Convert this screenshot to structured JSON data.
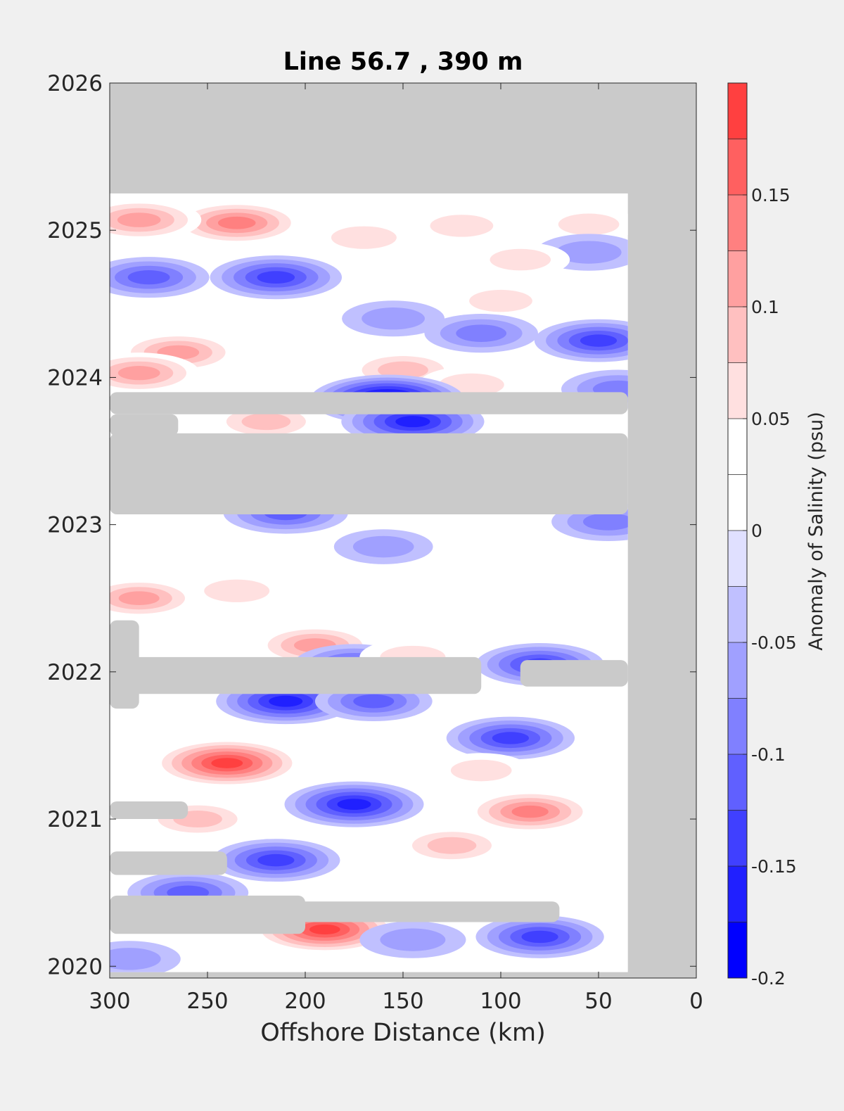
{
  "chart_data": {
    "type": "heatmap",
    "subtype": "filled-contour",
    "title": "Line 56.7 , 390 m",
    "xlabel": "Offshore Distance (km)",
    "ylabel": "",
    "x_reversed": true,
    "xlim": [
      0,
      300
    ],
    "ylim": [
      2019.92,
      2026
    ],
    "x_ticks": [
      300,
      250,
      200,
      150,
      100,
      50,
      0
    ],
    "y_ticks": [
      2020,
      2021,
      2022,
      2023,
      2024,
      2025,
      2026
    ],
    "grid": false,
    "colorbar": {
      "label": "Anomaly of Salinity (psu)",
      "range": [
        -0.2,
        0.2
      ],
      "tick_values": [
        -0.2,
        -0.15,
        -0.1,
        -0.05,
        0,
        0.05,
        0.1,
        0.15
      ],
      "tick_labels": [
        "-0.2",
        "-0.15",
        "-0.1",
        "-0.05",
        "0",
        "0.05",
        "0.1",
        "0.15"
      ],
      "levels": [
        -0.2,
        -0.175,
        -0.15,
        -0.125,
        -0.1,
        -0.075,
        -0.05,
        -0.025,
        0,
        0.025,
        0.05,
        0.075,
        0.1,
        0.125,
        0.15,
        0.175,
        0.2
      ],
      "colors": [
        "#0000ff",
        "#2020ff",
        "#4040ff",
        "#6060ff",
        "#8080ff",
        "#a0a0ff",
        "#c0c0ff",
        "#e0e0ff",
        "#ffffff",
        "#ffffff",
        "#ffe0e0",
        "#ffc0c0",
        "#ffa0a0",
        "#ff8080",
        "#ff6060",
        "#ff4040",
        "#ff2020",
        "#ff0000"
      ]
    },
    "no_data_color": "#cacaca",
    "background_color": "#f0f0f0",
    "data_extent": {
      "x_range": [
        35,
        300
      ],
      "y_range": [
        2019.96,
        2025.25
      ]
    },
    "no_data_bands": [
      {
        "x_from": 35,
        "x_to": 300,
        "y_from": 2023.07,
        "y_to": 2023.62
      },
      {
        "x_from": 35,
        "x_to": 300,
        "y_from": 2023.75,
        "y_to": 2023.9
      },
      {
        "x_from": 265,
        "x_to": 300,
        "y_from": 2023.6,
        "y_to": 2023.75
      },
      {
        "x_from": 110,
        "x_to": 300,
        "y_from": 2021.85,
        "y_to": 2022.1
      },
      {
        "x_from": 285,
        "x_to": 300,
        "y_from": 2021.75,
        "y_to": 2022.35
      },
      {
        "x_from": 35,
        "x_to": 90,
        "y_from": 2021.9,
        "y_to": 2022.08
      },
      {
        "x_from": 260,
        "x_to": 300,
        "y_from": 2021.0,
        "y_to": 2021.12
      },
      {
        "x_from": 240,
        "x_to": 300,
        "y_from": 2020.62,
        "y_to": 2020.78
      },
      {
        "x_from": 70,
        "x_to": 300,
        "y_from": 2020.3,
        "y_to": 2020.44
      },
      {
        "x_from": 200,
        "x_to": 300,
        "y_from": 2020.22,
        "y_to": 2020.48
      }
    ],
    "anomalies": [
      {
        "x": 235,
        "y": 2025.05,
        "value": 0.13
      },
      {
        "x": 285,
        "y": 2025.07,
        "value": 0.11
      },
      {
        "x": 170,
        "y": 2024.95,
        "value": 0.06
      },
      {
        "x": 120,
        "y": 2025.03,
        "value": 0.05
      },
      {
        "x": 55,
        "y": 2025.04,
        "value": 0.04
      },
      {
        "x": 215,
        "y": 2024.68,
        "value": -0.13
      },
      {
        "x": 280,
        "y": 2024.68,
        "value": -0.1
      },
      {
        "x": 55,
        "y": 2024.85,
        "value": -0.06
      },
      {
        "x": 90,
        "y": 2024.8,
        "value": 0.04
      },
      {
        "x": 100,
        "y": 2024.52,
        "value": 0.05
      },
      {
        "x": 155,
        "y": 2024.4,
        "value": -0.05
      },
      {
        "x": 110,
        "y": 2024.3,
        "value": -0.08
      },
      {
        "x": 50,
        "y": 2024.25,
        "value": -0.12
      },
      {
        "x": 265,
        "y": 2024.17,
        "value": 0.1
      },
      {
        "x": 285,
        "y": 2024.03,
        "value": 0.1
      },
      {
        "x": 150,
        "y": 2024.05,
        "value": 0.08
      },
      {
        "x": 115,
        "y": 2023.95,
        "value": 0.06
      },
      {
        "x": 158,
        "y": 2023.85,
        "value": -0.19
      },
      {
        "x": 145,
        "y": 2023.7,
        "value": -0.16
      },
      {
        "x": 220,
        "y": 2023.7,
        "value": 0.07
      },
      {
        "x": 40,
        "y": 2023.92,
        "value": -0.08
      },
      {
        "x": 210,
        "y": 2023.08,
        "value": -0.11
      },
      {
        "x": 45,
        "y": 2023.02,
        "value": -0.08
      },
      {
        "x": 160,
        "y": 2022.85,
        "value": -0.04
      },
      {
        "x": 285,
        "y": 2022.5,
        "value": 0.09
      },
      {
        "x": 235,
        "y": 2022.55,
        "value": 0.06
      },
      {
        "x": 195,
        "y": 2022.18,
        "value": 0.1
      },
      {
        "x": 175,
        "y": 2022.05,
        "value": -0.1
      },
      {
        "x": 145,
        "y": 2022.1,
        "value": 0.06
      },
      {
        "x": 80,
        "y": 2022.05,
        "value": -0.12
      },
      {
        "x": 210,
        "y": 2021.8,
        "value": -0.15
      },
      {
        "x": 165,
        "y": 2021.8,
        "value": -0.09
      },
      {
        "x": 95,
        "y": 2021.55,
        "value": -0.12
      },
      {
        "x": 240,
        "y": 2021.38,
        "value": 0.18
      },
      {
        "x": 175,
        "y": 2021.1,
        "value": -0.15
      },
      {
        "x": 85,
        "y": 2021.05,
        "value": 0.12
      },
      {
        "x": 110,
        "y": 2021.33,
        "value": 0.04
      },
      {
        "x": 255,
        "y": 2021.0,
        "value": 0.07
      },
      {
        "x": 125,
        "y": 2020.82,
        "value": 0.07
      },
      {
        "x": 215,
        "y": 2020.72,
        "value": -0.12
      },
      {
        "x": 190,
        "y": 2020.25,
        "value": 0.17
      },
      {
        "x": 260,
        "y": 2020.5,
        "value": -0.1
      },
      {
        "x": 80,
        "y": 2020.2,
        "value": -0.12
      },
      {
        "x": 145,
        "y": 2020.18,
        "value": -0.06
      },
      {
        "x": 290,
        "y": 2020.05,
        "value": -0.05
      }
    ]
  }
}
